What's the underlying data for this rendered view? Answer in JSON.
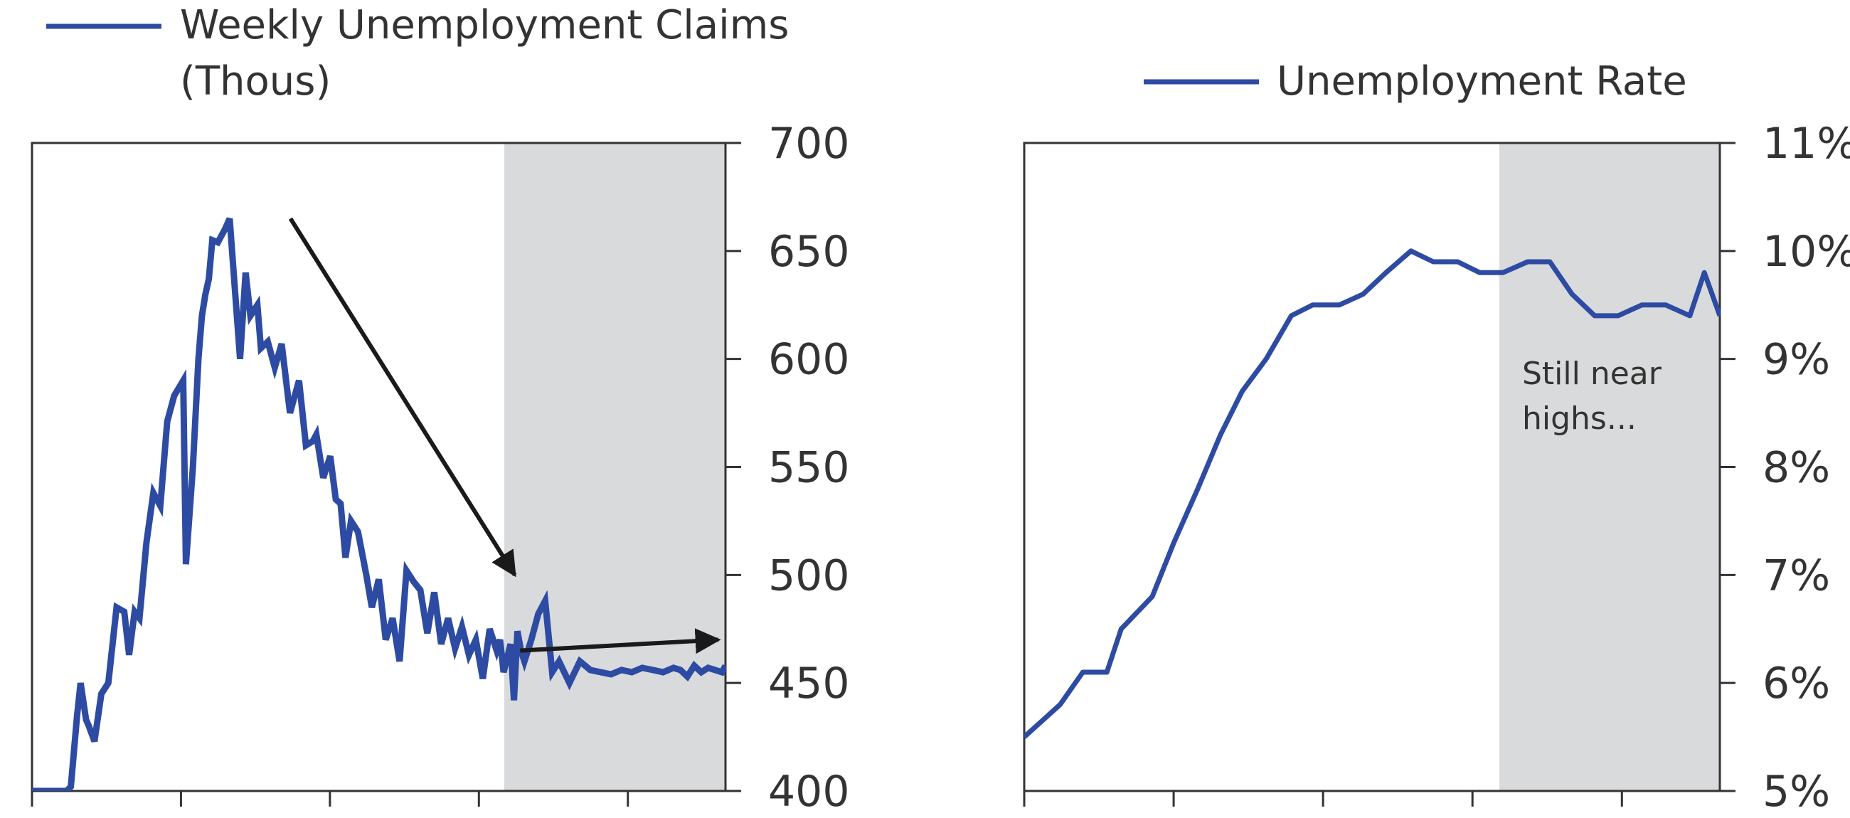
{
  "chart_data": [
    {
      "type": "line",
      "title": "",
      "xlabel": "",
      "ylabel": "",
      "ylim": [
        400,
        700
      ],
      "y_ticks": [
        "700",
        "650",
        "600",
        "550",
        "500",
        "450",
        "400"
      ],
      "y_tick_values": [
        700,
        650,
        600,
        550,
        500,
        450,
        400
      ],
      "x_tick_count": 5,
      "y_axis_position": "right",
      "grid": false,
      "legend": {
        "lines": [
          "Weekly Unemployment Claims",
          "(Thous)"
        ],
        "placement": "top-left"
      },
      "shaded_region": {
        "x_start": 0.6877,
        "x_end": 1.0,
        "color": "#d9dadc"
      },
      "arrows": [
        {
          "from": [
            0.3727,
            665
          ],
          "to": [
            0.6961,
            500
          ]
        },
        {
          "from": [
            0.7039,
            465
          ],
          "to": [
            0.9898,
            470
          ]
        }
      ],
      "series": [
        {
          "color": "#2e4ba3",
          "x": [
            0.0,
            0.05,
            0.056,
            0.065,
            0.07,
            0.078,
            0.082,
            0.09,
            0.1,
            0.11,
            0.122,
            0.133,
            0.14,
            0.148,
            0.155,
            0.165,
            0.175,
            0.185,
            0.195,
            0.205,
            0.218,
            0.222,
            0.232,
            0.24,
            0.245,
            0.25,
            0.255,
            0.26,
            0.268,
            0.278,
            0.285,
            0.3,
            0.308,
            0.315,
            0.325,
            0.33,
            0.34,
            0.35,
            0.36,
            0.372,
            0.385,
            0.395,
            0.405,
            0.41,
            0.42,
            0.43,
            0.438,
            0.445,
            0.452,
            0.46,
            0.47,
            0.482,
            0.49,
            0.5,
            0.51,
            0.52,
            0.53,
            0.54,
            0.55,
            0.56,
            0.57,
            0.58,
            0.59,
            0.6,
            0.61,
            0.62,
            0.63,
            0.64,
            0.65,
            0.66,
            0.67,
            0.675,
            0.68,
            0.69,
            0.695,
            0.7,
            0.705,
            0.71,
            0.72,
            0.73,
            0.74,
            0.75,
            0.76,
            0.775,
            0.79,
            0.805,
            0.82,
            0.835,
            0.85,
            0.865,
            0.88,
            0.895,
            0.91,
            0.925,
            0.935,
            0.945,
            0.955,
            0.965,
            0.975,
            0.985,
            0.995,
            1.0
          ],
          "values": [
            400,
            400,
            402,
            435,
            450,
            433,
            430,
            423,
            445,
            450,
            485,
            483,
            463,
            483,
            480,
            515,
            538,
            532,
            571,
            583,
            590,
            505,
            550,
            600,
            620,
            630,
            637,
            655,
            654,
            660,
            665,
            600,
            640,
            620,
            625,
            605,
            608,
            596,
            607,
            575,
            590,
            560,
            562,
            565,
            545,
            555,
            535,
            533,
            508,
            525,
            520,
            500,
            485,
            498,
            470,
            480,
            460,
            502,
            497,
            493,
            473,
            492,
            468,
            480,
            466,
            476,
            463,
            470,
            452,
            475,
            465,
            470,
            455,
            468,
            442,
            474,
            465,
            460,
            470,
            482,
            488,
            455,
            460,
            450,
            460,
            456,
            455,
            454,
            456,
            455,
            457,
            456,
            455,
            457,
            456,
            453,
            458,
            455,
            457,
            456,
            455,
            458
          ]
        }
      ]
    },
    {
      "type": "line",
      "title": "",
      "xlabel": "",
      "ylabel": "",
      "ylim": [
        5,
        11
      ],
      "y_ticks": [
        "11%",
        "10%",
        "9%",
        "8%",
        "7%",
        "6%",
        "5%"
      ],
      "y_tick_values": [
        11,
        10,
        9,
        8,
        7,
        6,
        5
      ],
      "x_tick_count": 5,
      "y_axis_position": "right",
      "grid": false,
      "legend": {
        "lines": [
          "Unemployment Rate"
        ],
        "placement": "top-right"
      },
      "shaded_region": {
        "x_start": 0.6898,
        "x_end": 1.0,
        "color": "#d9dadc"
      },
      "annotation": {
        "lines": [
          "Still near",
          "highs..."
        ],
        "x": 0.7275,
        "y": 9.0
      },
      "series": [
        {
          "color": "#2e4ba3",
          "x": [
            0.0,
            0.0516,
            0.0843,
            0.1188,
            0.1394,
            0.1841,
            0.2151,
            0.2496,
            0.2823,
            0.3133,
            0.3477,
            0.3839,
            0.4146,
            0.4528,
            0.4871,
            0.5201,
            0.5559,
            0.588,
            0.6231,
            0.6546,
            0.6883,
            0.7238,
            0.7556,
            0.7875,
            0.8201,
            0.8537,
            0.8878,
            0.9225,
            0.957,
            0.9777,
            1.0
          ],
          "values": [
            5.5,
            5.8,
            6.1,
            6.1,
            6.5,
            6.8,
            7.3,
            7.8,
            8.3,
            8.7,
            9.0,
            9.4,
            9.5,
            9.5,
            9.6,
            9.8,
            10.0,
            9.9,
            9.9,
            9.8,
            9.8,
            9.9,
            9.9,
            9.6,
            9.4,
            9.4,
            9.5,
            9.5,
            9.4,
            9.8,
            9.4
          ]
        }
      ]
    }
  ]
}
